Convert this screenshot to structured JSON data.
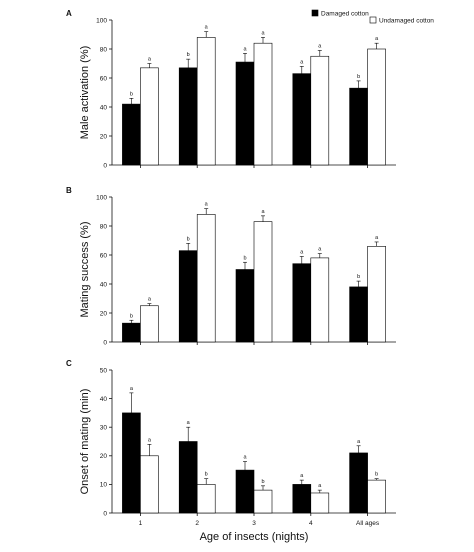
{
  "legend": {
    "damaged_label": "Damaged cotton",
    "undamaged_label": "Undamaged cotton"
  },
  "xlabel": "Age of insects (nights)",
  "chart_data": [
    {
      "type": "bar",
      "panel": "A",
      "ylabel": "Male activation  (%)",
      "ylim": [
        0,
        100
      ],
      "yticks": [
        0,
        20,
        40,
        60,
        80,
        100
      ],
      "categories": [
        "1",
        "2",
        "3",
        "4",
        "All ages"
      ],
      "series": [
        {
          "name": "Damaged cotton",
          "values": [
            42,
            67,
            71,
            63,
            53
          ],
          "errors": [
            4,
            6,
            6,
            5,
            5
          ],
          "sig": [
            "b",
            "b",
            "a",
            "a",
            "b"
          ]
        },
        {
          "name": "Undamaged cotton",
          "values": [
            67,
            88,
            84,
            75,
            80
          ],
          "errors": [
            3,
            4,
            4,
            4,
            4
          ],
          "sig": [
            "a",
            "a",
            "a",
            "a",
            "a"
          ]
        }
      ],
      "legend_position": "top-right"
    },
    {
      "type": "bar",
      "panel": "B",
      "ylabel": "Mating success (%)",
      "ylim": [
        0,
        100
      ],
      "yticks": [
        0,
        20,
        40,
        60,
        80,
        100
      ],
      "categories": [
        "1",
        "2",
        "3",
        "4",
        "All ages"
      ],
      "series": [
        {
          "name": "Damaged cotton",
          "values": [
            13,
            63,
            50,
            54,
            38
          ],
          "errors": [
            2,
            5,
            5,
            5,
            4
          ],
          "sig": [
            "b",
            "b",
            "b",
            "a",
            "b"
          ]
        },
        {
          "name": "Undamaged cotton",
          "values": [
            25,
            88,
            83,
            58,
            66
          ],
          "errors": [
            1.5,
            4,
            4,
            3,
            3
          ],
          "sig": [
            "a",
            "a",
            "a",
            "a",
            "a"
          ]
        }
      ]
    },
    {
      "type": "bar",
      "panel": "C",
      "ylabel": "Onset of mating (min)",
      "ylim": [
        0,
        50
      ],
      "yticks": [
        0,
        10,
        20,
        30,
        40,
        50
      ],
      "categories": [
        "1",
        "2",
        "3",
        "4",
        "All ages"
      ],
      "series": [
        {
          "name": "Damaged cotton",
          "values": [
            35,
            25,
            15,
            10,
            21
          ],
          "errors": [
            7,
            5,
            3,
            1.5,
            2.5
          ],
          "sig": [
            "a",
            "a",
            "a",
            "a",
            "a"
          ]
        },
        {
          "name": "Undamaged cotton",
          "values": [
            20,
            10,
            8,
            7,
            11.5
          ],
          "errors": [
            4,
            2,
            1.5,
            1,
            0.5
          ],
          "sig": [
            "a",
            "b",
            "b",
            "a",
            "b"
          ]
        }
      ]
    }
  ]
}
